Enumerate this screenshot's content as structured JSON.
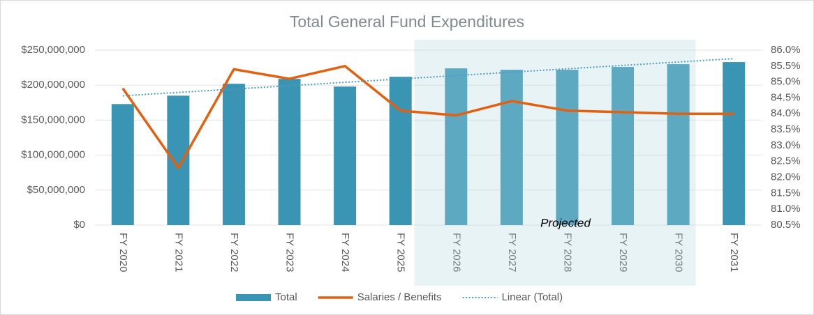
{
  "chart_data": {
    "type": "bar",
    "title": "Total General Fund Expenditures",
    "categories": [
      "FY 2020",
      "FY 2021",
      "FY 2022",
      "FY 2023",
      "FY 2024",
      "FY 2025",
      "FY 2026",
      "FY 2027",
      "FY 2028",
      "FY 2029",
      "FY 2030",
      "FY 2031"
    ],
    "series": [
      {
        "name": "Total",
        "type": "bar",
        "color": "#3a95b5",
        "values": [
          173000000,
          185000000,
          202000000,
          209000000,
          198000000,
          212000000,
          224000000,
          222000000,
          222000000,
          226000000,
          230000000,
          233000000
        ]
      },
      {
        "name": "Salaries / Benefits",
        "type": "line",
        "axis": "y2",
        "color": "#e2600f",
        "values": [
          84.8,
          82.3,
          85.4,
          85.1,
          85.5,
          84.1,
          83.95,
          84.4,
          84.1,
          84.05,
          84.0,
          84.0
        ]
      },
      {
        "name": "Linear (Total)",
        "type": "line",
        "dash": "dotted",
        "color": "#4a9fc0",
        "values": [
          184800000,
          189600000,
          194400000,
          199200000,
          204100000,
          208900000,
          213700000,
          218600000,
          223400000,
          228200000,
          233100000,
          237900000
        ]
      }
    ],
    "ylim": [
      0,
      250000000
    ],
    "yticks": [
      {
        "value": 0,
        "label": "$0"
      },
      {
        "value": 50000000,
        "label": "$50,000,000"
      },
      {
        "value": 100000000,
        "label": "$100,000,000"
      },
      {
        "value": 150000000,
        "label": "$150,000,000"
      },
      {
        "value": 200000000,
        "label": "$200,000,000"
      },
      {
        "value": 250000000,
        "label": "$250,000,000"
      }
    ],
    "y2lim": [
      80.5,
      86.0
    ],
    "y2ticks": [
      {
        "value": 80.5,
        "label": "80.5%"
      },
      {
        "value": 81.0,
        "label": "81.0%"
      },
      {
        "value": 81.5,
        "label": "81.5%"
      },
      {
        "value": 82.0,
        "label": "82.0%"
      },
      {
        "value": 82.5,
        "label": "82.5%"
      },
      {
        "value": 83.0,
        "label": "83.0%"
      },
      {
        "value": 83.5,
        "label": "83.5%"
      },
      {
        "value": 84.0,
        "label": "84.0%"
      },
      {
        "value": 84.5,
        "label": "84.5%"
      },
      {
        "value": 85.0,
        "label": "85.0%"
      },
      {
        "value": 85.5,
        "label": "85.5%"
      },
      {
        "value": 86.0,
        "label": "86.0%"
      }
    ],
    "grid": true,
    "legend": "bottom",
    "annotation": {
      "text": "Projected",
      "start": "FY 2026",
      "end": "FY 2030",
      "color": "rgba(180,215,225,0.3)"
    }
  }
}
